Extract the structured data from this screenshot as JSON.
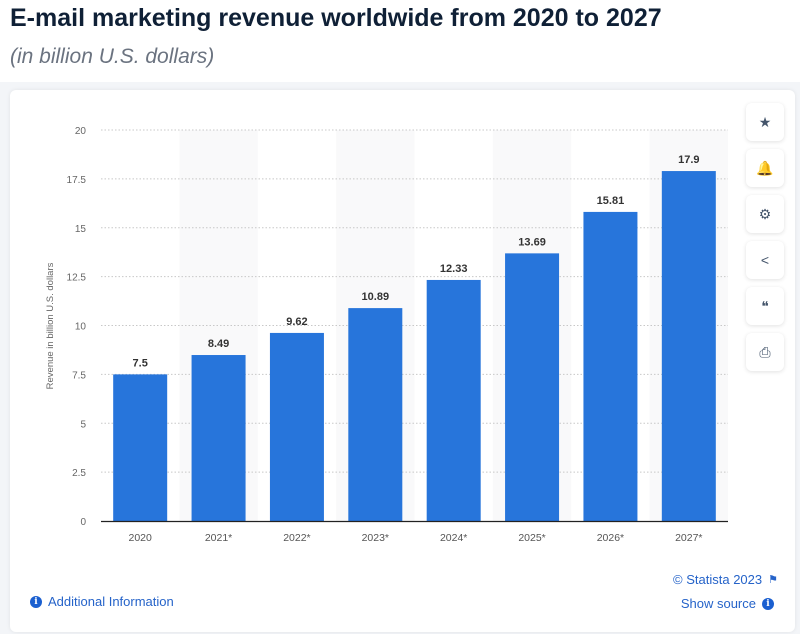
{
  "header": {
    "title": "E-mail marketing revenue worldwide from 2020 to 2027",
    "subtitle": "(in billion U.S. dollars)"
  },
  "sidebar": {
    "buttons": [
      {
        "name": "favorite",
        "icon": "star-icon",
        "glyph": "★"
      },
      {
        "name": "notification",
        "icon": "bell-icon",
        "glyph": "🔔"
      },
      {
        "name": "settings",
        "icon": "gear-icon",
        "glyph": "⚙"
      },
      {
        "name": "share",
        "icon": "share-icon",
        "glyph": "<"
      },
      {
        "name": "cite",
        "icon": "quote-icon",
        "glyph": "❝"
      },
      {
        "name": "print",
        "icon": "printer-icon",
        "glyph": "⎙"
      }
    ]
  },
  "footer": {
    "additional_info": "Additional Information",
    "copyright": "© Statista 2023",
    "show_source": "Show source"
  },
  "chart_data": {
    "type": "bar",
    "title": "",
    "xlabel": "",
    "ylabel": "Revenue in billion U.S. dollars",
    "categories": [
      "2020",
      "2021*",
      "2022*",
      "2023*",
      "2024*",
      "2025*",
      "2026*",
      "2027*"
    ],
    "values": [
      7.5,
      8.49,
      9.62,
      10.89,
      12.33,
      13.69,
      15.81,
      17.9
    ],
    "data_labels": [
      "7.5",
      "8.49",
      "9.62",
      "10.89",
      "12.33",
      "13.69",
      "15.81",
      "17.9"
    ],
    "ylim": [
      0,
      20
    ],
    "yticks": [
      "0",
      "2.5",
      "5",
      "7.5",
      "10",
      "12.5",
      "15",
      "17.5",
      "20"
    ],
    "grid": true,
    "bar_color": "#2775db"
  }
}
